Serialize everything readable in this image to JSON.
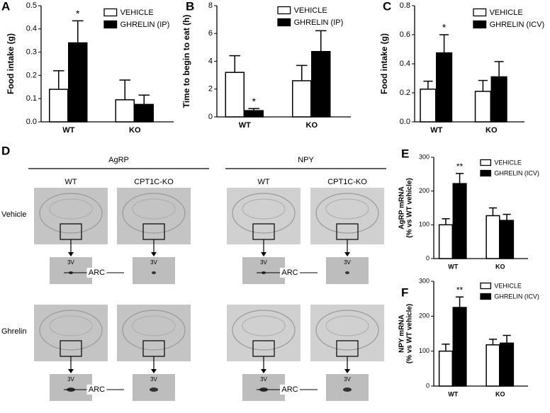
{
  "chart_data": [
    {
      "type": "bar",
      "panel_label": "A",
      "ylabel": [
        "Food intake (g)"
      ],
      "categories": [
        "WT",
        "KO"
      ],
      "ylim": [
        0,
        0.5
      ],
      "yticks": [
        {
          "value": 0,
          "label": "0.0"
        },
        0.1,
        0.2,
        0.3,
        0.4,
        0.5
      ],
      "legend": "upper right",
      "series": [
        {
          "name": "VEHICLE",
          "color": "#ffffff",
          "values": [
            0.14,
            0.095
          ],
          "errors": [
            0.08,
            0.085
          ]
        },
        {
          "name": "GHRELIN (IP)",
          "color": "#000000",
          "values": [
            0.34,
            0.075
          ],
          "errors": [
            0.095,
            0.04
          ]
        }
      ],
      "annotations": [
        {
          "text": "*",
          "category": "WT",
          "series": "GHRELIN (IP)"
        }
      ]
    },
    {
      "type": "bar",
      "panel_label": "B",
      "ylabel": [
        "Time to begin to eat (h)"
      ],
      "categories": [
        "WT",
        "KO"
      ],
      "ylim": [
        0,
        8
      ],
      "yticks": [
        0,
        2,
        4,
        6,
        8
      ],
      "legend": "upper right",
      "series": [
        {
          "name": "VEHICLE",
          "color": "#ffffff",
          "values": [
            3.2,
            2.6
          ],
          "errors": [
            1.2,
            1.1
          ]
        },
        {
          "name": "GHRELIN (IP)",
          "color": "#000000",
          "values": [
            0.45,
            4.7
          ],
          "errors": [
            0.15,
            1.5
          ]
        }
      ],
      "annotations": [
        {
          "text": "*",
          "category": "WT",
          "series": "GHRELIN (IP)"
        }
      ]
    },
    {
      "type": "bar",
      "panel_label": "C",
      "ylabel": [
        "Food intake (g)"
      ],
      "categories": [
        "WT",
        "KO"
      ],
      "ylim": [
        0,
        0.8
      ],
      "yticks": [
        {
          "value": 0,
          "label": "0.0"
        },
        0.2,
        0.4,
        0.6,
        0.8
      ],
      "legend": "upper right",
      "series": [
        {
          "name": "VEHICLE",
          "color": "#ffffff",
          "values": [
            0.225,
            0.21
          ],
          "errors": [
            0.055,
            0.075
          ]
        },
        {
          "name": "GHRELIN (ICV)",
          "color": "#000000",
          "values": [
            0.475,
            0.31
          ],
          "errors": [
            0.125,
            0.105
          ]
        }
      ],
      "annotations": [
        {
          "text": "*",
          "category": "WT",
          "series": "GHRELIN (ICV)"
        }
      ]
    },
    {
      "type": "bar",
      "panel_label": "E",
      "ylabel": [
        "AgRP mRNA",
        "(% vs WT vehicle)"
      ],
      "categories": [
        "WT",
        "KO"
      ],
      "ylim": [
        0,
        300
      ],
      "yticks": [
        0,
        100,
        200,
        300
      ],
      "legend": "upper right",
      "series": [
        {
          "name": "VEHICLE",
          "color": "#ffffff",
          "values": [
            100,
            127
          ],
          "errors": [
            18,
            23
          ]
        },
        {
          "name": "GHRELIN (ICV)",
          "color": "#000000",
          "values": [
            222,
            113
          ],
          "errors": [
            30,
            18
          ]
        }
      ],
      "annotations": [
        {
          "text": "**",
          "category": "WT",
          "series": "GHRELIN (ICV)"
        }
      ]
    },
    {
      "type": "bar",
      "panel_label": "F",
      "ylabel": [
        "NPY mRNA",
        "(% vs WT vehicle)"
      ],
      "categories": [
        "WT",
        "KO"
      ],
      "ylim": [
        0,
        300
      ],
      "yticks": [
        0,
        100,
        200,
        300
      ],
      "legend": "upper right",
      "series": [
        {
          "name": "VEHICLE",
          "color": "#ffffff",
          "values": [
            100,
            118
          ],
          "errors": [
            20,
            16
          ]
        },
        {
          "name": "GHRELIN (ICV)",
          "color": "#000000",
          "values": [
            225,
            123
          ],
          "errors": [
            30,
            22
          ]
        }
      ],
      "annotations": [
        {
          "text": "**",
          "category": "WT",
          "series": "GHRELIN (ICV)"
        }
      ]
    }
  ],
  "panel_d": {
    "panel_label": "D",
    "groups": [
      "AgRP",
      "NPY"
    ],
    "columns": [
      "WT",
      "CPT1C-KO",
      "WT",
      "CPT1C-KO"
    ],
    "rows": [
      "Vehicle",
      "Ghrelin"
    ],
    "ventricle_label": "3V",
    "nucleus_label": "ARC"
  }
}
